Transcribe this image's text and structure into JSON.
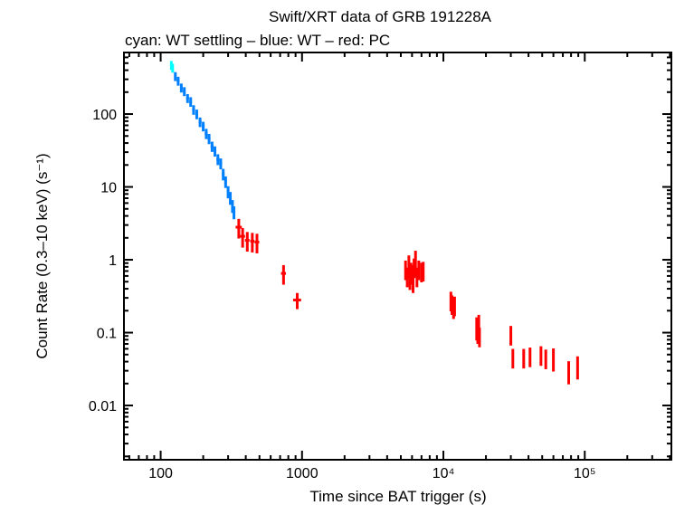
{
  "chart_data": {
    "type": "scatter",
    "title": "Swift/XRT data of GRB 191228A",
    "subtitle": "cyan: WT settling – blue: WT – red: PC",
    "xlabel": "Time since BAT trigger (s)",
    "ylabel": "Count Rate (0.3–10 keV) (s⁻¹)",
    "xscale": "log",
    "yscale": "log",
    "xlim": [
      55,
      410000
    ],
    "ylim": [
      0.0018,
      700
    ],
    "grid": false,
    "x_ticks": [
      {
        "value": 100,
        "label": "100"
      },
      {
        "value": 1000,
        "label": "1000"
      },
      {
        "value": 10000,
        "label": "10⁴"
      },
      {
        "value": 100000,
        "label": "10⁵"
      }
    ],
    "y_ticks": [
      {
        "value": 0.01,
        "label": "0.01"
      },
      {
        "value": 0.1,
        "label": "0.1"
      },
      {
        "value": 1,
        "label": "1"
      },
      {
        "value": 10,
        "label": "10"
      },
      {
        "value": 100,
        "label": "100"
      }
    ],
    "series": [
      {
        "mode": "WT settling",
        "color": "#00ffff",
        "points": [
          [
            119,
            470,
            1.2,
            0.14
          ],
          [
            121.5,
            430,
            1.2,
            0.14
          ]
        ]
      },
      {
        "mode": "WT",
        "color": "#0080ff",
        "points": [
          [
            127,
            330,
            2.5,
            0.14
          ],
          [
            133,
            285,
            3,
            0.14
          ],
          [
            140,
            230,
            3,
            0.14
          ],
          [
            147,
            205,
            3,
            0.14
          ],
          [
            155,
            165,
            3.5,
            0.14
          ],
          [
            163,
            148,
            3.5,
            0.15
          ],
          [
            171,
            115,
            4,
            0.15
          ],
          [
            180,
            100,
            4,
            0.15
          ],
          [
            190,
            78,
            4.5,
            0.15
          ],
          [
            200,
            68,
            4.5,
            0.15
          ],
          [
            210,
            54,
            5,
            0.16
          ],
          [
            220,
            46,
            5,
            0.16
          ],
          [
            231,
            36,
            5.5,
            0.16
          ],
          [
            242,
            31,
            5.5,
            0.16
          ],
          [
            254,
            24,
            6,
            0.17
          ],
          [
            266,
            21,
            6,
            0.17
          ],
          [
            277,
            15,
            6,
            0.18
          ],
          [
            288,
            11.8,
            6,
            0.18
          ],
          [
            300,
            8.6,
            6,
            0.19
          ],
          [
            311,
            7.1,
            6,
            0.2
          ],
          [
            322,
            5.5,
            5,
            0.2
          ],
          [
            330,
            4.5,
            4,
            0.2
          ]
        ]
      },
      {
        "mode": "PC",
        "color": "#ff0000",
        "points": [
          [
            357,
            2.8,
            18,
            0.3
          ],
          [
            380,
            2.1,
            15,
            0.3
          ],
          [
            410,
            1.85,
            15,
            0.3
          ],
          [
            445,
            1.8,
            15,
            0.3
          ],
          [
            480,
            1.75,
            18,
            0.3
          ],
          [
            740,
            0.65,
            30,
            0.3
          ],
          [
            925,
            0.28,
            60,
            0.25
          ],
          [
            5400,
            0.75,
            60,
            0.3
          ],
          [
            5550,
            0.6,
            60,
            0.3
          ],
          [
            5700,
            0.85,
            60,
            0.35
          ],
          [
            5800,
            0.55,
            60,
            0.3
          ],
          [
            5900,
            0.7,
            60,
            0.3
          ],
          [
            6000,
            0.65,
            60,
            0.3
          ],
          [
            6100,
            0.5,
            60,
            0.3
          ],
          [
            6200,
            0.8,
            60,
            0.3
          ],
          [
            6350,
            0.95,
            70,
            0.4
          ],
          [
            6500,
            0.6,
            70,
            0.3
          ],
          [
            6700,
            0.75,
            80,
            0.3
          ],
          [
            7000,
            0.7,
            90,
            0.3
          ],
          [
            7200,
            0.72,
            90,
            0.3
          ],
          [
            11300,
            0.28,
            150,
            0.3
          ],
          [
            11500,
            0.25,
            150,
            0.3
          ],
          [
            11800,
            0.22,
            150,
            0.3
          ],
          [
            12000,
            0.24,
            150,
            0.3
          ],
          [
            17200,
            0.12,
            200,
            0.35
          ],
          [
            17500,
            0.1,
            200,
            0.3
          ],
          [
            17800,
            0.13,
            200,
            0.35
          ],
          [
            18000,
            0.09,
            200,
            0.3
          ],
          [
            30000,
            0.095,
            400,
            0.3
          ],
          [
            31000,
            0.046,
            500,
            0.3
          ],
          [
            37000,
            0.046,
            600,
            0.3
          ],
          [
            41000,
            0.048,
            600,
            0.3
          ],
          [
            49000,
            0.05,
            800,
            0.3
          ],
          [
            53000,
            0.045,
            900,
            0.3
          ],
          [
            60000,
            0.045,
            900,
            0.35
          ],
          [
            77000,
            0.03,
            500,
            0.35
          ],
          [
            89000,
            0.035,
            500,
            0.35
          ]
        ]
      }
    ]
  }
}
